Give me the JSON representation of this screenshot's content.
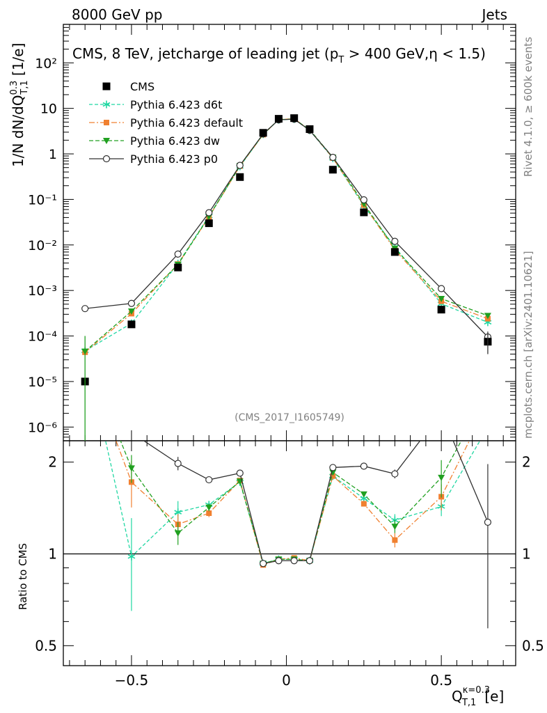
{
  "header": {
    "left": "8000 GeV pp",
    "right": "Jets"
  },
  "side_texts": {
    "rivet": "Rivet 4.1.0, ≥ 600k events",
    "mcplots": "mcplots.cern.ch [arXiv:2401.10621]"
  },
  "chart_data": {
    "type": "scatter",
    "title": "CMS, 8 TeV, jetcharge of leading jet (pT > 400 GeV,η < 1.5)",
    "analysis_id": "(CMS_2017_I1605749)",
    "ylabel_top": "1/N dN/dQ0.3T,1 [1/e]",
    "ylabel_ratio": "Ratio to CMS",
    "xlabel": "Qκ=0.3T,1 [e]",
    "xlim": [
      -0.72,
      0.74
    ],
    "ylim_top": [
      5e-07,
      700
    ],
    "ylim_ratio": [
      0.43,
      2.35
    ],
    "y_tick_labels": [
      "10⁻⁶",
      "10⁻⁵",
      "10⁻⁴",
      "10⁻³",
      "10⁻²",
      "10⁻¹",
      "1",
      "10",
      "10²"
    ],
    "ratio_tick_labels": [
      "0.5",
      "1",
      "2"
    ],
    "x_tick_labels": [
      "−0.5",
      "0",
      "0.5"
    ],
    "x": [
      -0.65,
      -0.5,
      -0.35,
      -0.25,
      -0.15,
      -0.075,
      -0.025,
      0.025,
      0.075,
      0.15,
      0.25,
      0.35,
      0.5,
      0.65
    ],
    "data": {
      "name": "CMS",
      "values": [
        1e-05,
        0.00018,
        0.0032,
        0.03,
        0.31,
        2.9,
        5.9,
        6.1,
        3.5,
        0.45,
        0.052,
        0.007,
        0.00038,
        7.5e-05
      ],
      "ratio_err": [
        0,
        0,
        0.07,
        0.035,
        0.02,
        0.01,
        0.01,
        0.01,
        0.01,
        0.02,
        0.02,
        0.04,
        0,
        0.7
      ]
    },
    "series": [
      {
        "name": "Pythia 6.423 d6t",
        "color": "#1fd7a2",
        "values": [
          4.7e-05,
          0.00019,
          0.0039,
          0.043,
          0.53,
          2.7,
          5.6,
          5.8,
          3.3,
          0.8,
          0.072,
          0.009,
          0.00051,
          0.0002
        ],
        "ratio": [
          4.7,
          0.98,
          1.37,
          1.45,
          1.72,
          0.93,
          0.96,
          0.96,
          0.95,
          1.8,
          1.52,
          1.29,
          1.43,
          2.6
        ],
        "ratio_err": [
          0,
          0.33,
          0.12,
          0.04,
          0.03,
          0,
          0,
          0,
          0,
          0.03,
          0.03,
          0.06,
          0.1,
          0
        ]
      },
      {
        "name": "Pythia 6.423 default",
        "color": "#f08030",
        "values": [
          4.4e-05,
          0.00031,
          0.0038,
          0.041,
          0.54,
          2.65,
          5.7,
          5.9,
          3.35,
          0.81,
          0.075,
          0.0078,
          0.00058,
          0.00024
        ],
        "ratio": [
          4.4,
          1.72,
          1.25,
          1.36,
          1.74,
          0.92,
          0.96,
          0.97,
          0.95,
          1.8,
          1.46,
          1.11,
          1.54,
          3.1
        ],
        "ratio_err": [
          0,
          0.3,
          0.1,
          0.04,
          0.03,
          0,
          0,
          0,
          0,
          0.03,
          0.03,
          0.06,
          0.15,
          0
        ]
      },
      {
        "name": "Pythia 6.423 dw",
        "color": "#20a020",
        "values": [
          4.6e-05,
          0.00035,
          0.0037,
          0.042,
          0.55,
          2.7,
          5.65,
          5.85,
          3.4,
          0.84,
          0.08,
          0.0084,
          0.00066,
          0.00028
        ],
        "ratio": [
          4.6,
          1.91,
          1.17,
          1.42,
          1.73,
          0.93,
          0.96,
          0.96,
          0.95,
          1.85,
          1.57,
          1.23,
          1.78,
          3.4
        ],
        "ratio_err": [
          0,
          0.2,
          0.1,
          0.04,
          0.03,
          0,
          0,
          0,
          0,
          0.03,
          0.03,
          0.06,
          0.25,
          0
        ]
      },
      {
        "name": "Pythia 6.423 p0",
        "color": "#303030",
        "values": [
          0.0004,
          0.00052,
          0.0063,
          0.051,
          0.56,
          2.75,
          5.6,
          5.8,
          3.3,
          0.84,
          0.098,
          0.012,
          0.0011,
          9.5e-05
        ],
        "ratio": [
          12,
          2.5,
          1.98,
          1.75,
          1.84,
          0.93,
          0.95,
          0.95,
          0.95,
          1.92,
          1.94,
          1.83,
          2.9,
          1.27
        ],
        "ratio_err": [
          0,
          0,
          0.1,
          0.03,
          0.02,
          0,
          0,
          0,
          0,
          0.02,
          0.02,
          0.06,
          0,
          0.7
        ]
      }
    ]
  }
}
